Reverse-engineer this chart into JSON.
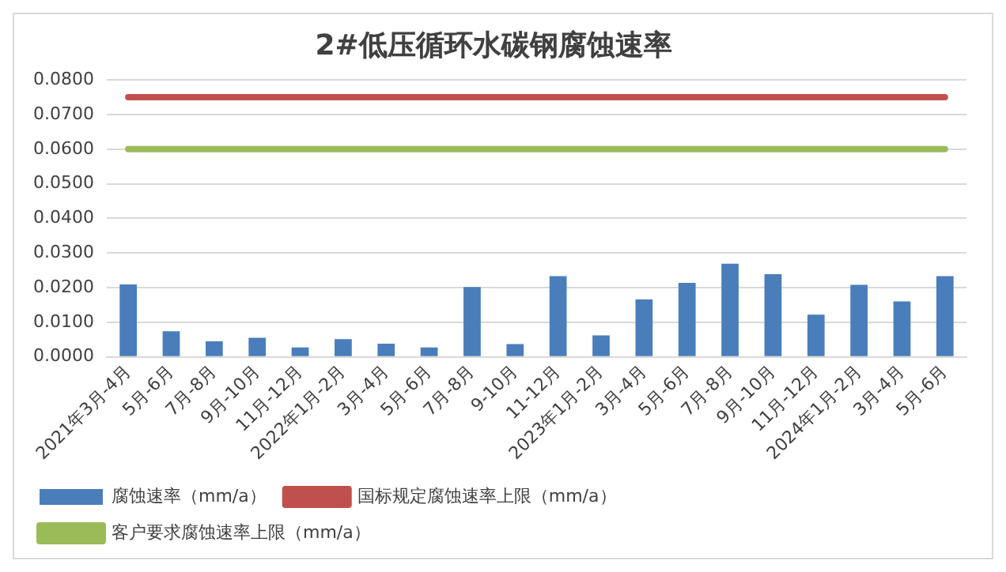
{
  "chart_data": {
    "type": "bar",
    "title": "2#低压循环水碳钢腐蚀速率",
    "categories": [
      "2021年3月-4月",
      "5月-6月",
      "7月-8月",
      "9月-10月",
      "11月-12月",
      "2022年1月-2月",
      "3月-4月",
      "5月-6月",
      "7月-8月",
      "9-10月",
      "11-12月",
      "2023年1月-2月",
      "3月-4月",
      "5月-6月",
      "7月-8月",
      "9月-10月",
      "11月-12月",
      "2024年1月-2月",
      "3月-4月",
      "5月-6月"
    ],
    "series": [
      {
        "name": "腐蚀速率（mm/a）",
        "color": "#4a7ebb",
        "values": [
          0.0209,
          0.0074,
          0.0045,
          0.0055,
          0.0027,
          0.0051,
          0.0038,
          0.0027,
          0.0202,
          0.0037,
          0.0233,
          0.0062,
          0.0166,
          0.0214,
          0.0269,
          0.0239,
          0.0122,
          0.0208,
          0.016,
          0.0233
        ]
      },
      {
        "name": "国标规定腐蚀速率上限（mm/a）",
        "color": "#c0504d",
        "type": "line",
        "values": [
          0.075,
          0.075,
          0.075,
          0.075,
          0.075,
          0.075,
          0.075,
          0.075,
          0.075,
          0.075,
          0.075,
          0.075,
          0.075,
          0.075,
          0.075,
          0.075,
          0.075,
          0.075,
          0.075,
          0.075
        ]
      },
      {
        "name": "客户要求腐蚀速率上限（mm/a）",
        "color": "#9bbb59",
        "type": "line",
        "values": [
          0.06,
          0.06,
          0.06,
          0.06,
          0.06,
          0.06,
          0.06,
          0.06,
          0.06,
          0.06,
          0.06,
          0.06,
          0.06,
          0.06,
          0.06,
          0.06,
          0.06,
          0.06,
          0.06,
          0.06
        ]
      }
    ],
    "ylim": [
      0,
      0.08
    ],
    "yticks": [
      {
        "value": 0,
        "label": "0.0000"
      },
      {
        "value": 0.01,
        "label": "0.0100"
      },
      {
        "value": 0.02,
        "label": "0.0200"
      },
      {
        "value": 0.03,
        "label": "0.0300"
      },
      {
        "value": 0.04,
        "label": "0.0400"
      },
      {
        "value": 0.05,
        "label": "0.0500"
      },
      {
        "value": 0.06,
        "label": "0.0600"
      },
      {
        "value": 0.07,
        "label": "0.0700"
      },
      {
        "value": 0.08,
        "label": "0.0800"
      }
    ],
    "grid": "y",
    "legend": "bottom",
    "marker": "none",
    "line_style": "solid"
  }
}
